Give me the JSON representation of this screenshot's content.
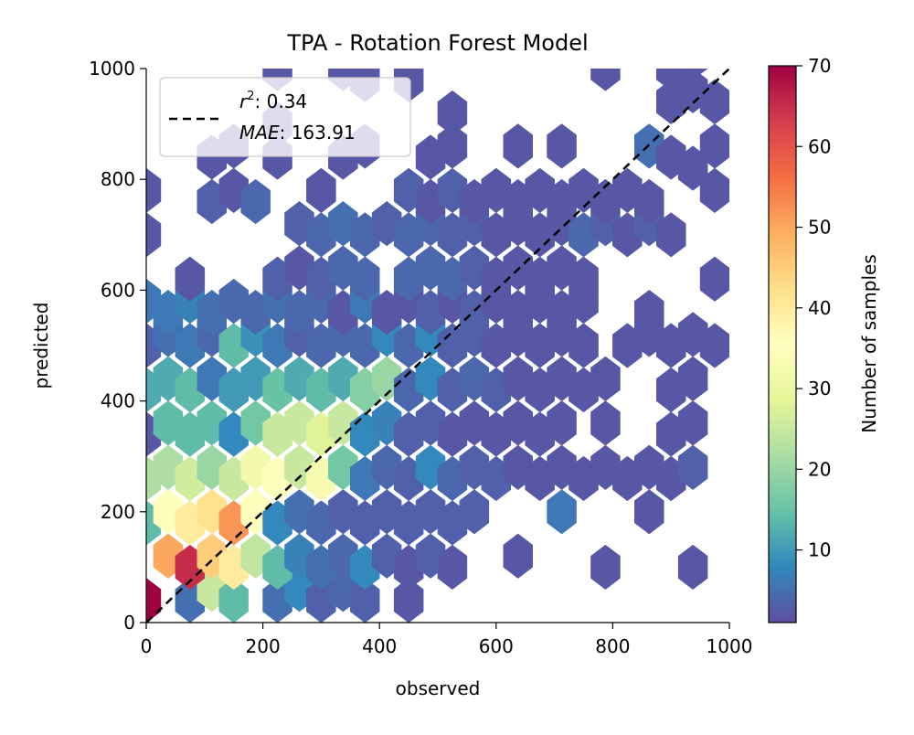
{
  "chart_data": {
    "type": "hexbin",
    "title": "TPA - Rotation Forest Model",
    "xlabel": "observed",
    "ylabel": "predicted",
    "xlim": [
      0,
      1000
    ],
    "ylim": [
      0,
      1000
    ],
    "x_ticks": [
      0,
      200,
      400,
      600,
      800,
      1000
    ],
    "y_ticks": [
      0,
      200,
      400,
      600,
      800,
      1000
    ],
    "grid": false,
    "legend": {
      "position": "top-left",
      "line_label": "1:1 line",
      "r2_label": "r",
      "r2_value": "0.34",
      "mae_label": "MAE",
      "mae_value": "163.91"
    },
    "colorbar": {
      "label": "Number of samples",
      "min": 1,
      "max": 70,
      "ticks": [
        10,
        20,
        30,
        40,
        50,
        60,
        70
      ],
      "colormap": "Spectral_r"
    },
    "hex_size_data_units": 50,
    "bins": [
      {
        "x": 0,
        "y": 40,
        "count": 70
      },
      {
        "x": 75,
        "y": 40,
        "count": 5
      },
      {
        "x": 112.5,
        "y": 60,
        "count": 25
      },
      {
        "x": 150,
        "y": 40,
        "count": 14
      },
      {
        "x": 225,
        "y": 40,
        "count": 5
      },
      {
        "x": 262.5,
        "y": 60,
        "count": 8
      },
      {
        "x": 300,
        "y": 40,
        "count": 3
      },
      {
        "x": 337.5,
        "y": 60,
        "count": 4
      },
      {
        "x": 375,
        "y": 40,
        "count": 3
      },
      {
        "x": 450,
        "y": 40,
        "count": 2
      },
      {
        "x": 37.5,
        "y": 120,
        "count": 50
      },
      {
        "x": 75,
        "y": 100,
        "count": 65
      },
      {
        "x": 112.5,
        "y": 120,
        "count": 45
      },
      {
        "x": 150,
        "y": 100,
        "count": 40
      },
      {
        "x": 187.5,
        "y": 120,
        "count": 24
      },
      {
        "x": 225,
        "y": 100,
        "count": 14
      },
      {
        "x": 262.5,
        "y": 120,
        "count": 7
      },
      {
        "x": 300,
        "y": 100,
        "count": 5
      },
      {
        "x": 337.5,
        "y": 120,
        "count": 4
      },
      {
        "x": 375,
        "y": 100,
        "count": 8
      },
      {
        "x": 412.5,
        "y": 120,
        "count": 3
      },
      {
        "x": 450,
        "y": 100,
        "count": 2
      },
      {
        "x": 487.5,
        "y": 120,
        "count": 3
      },
      {
        "x": 525,
        "y": 100,
        "count": 2
      },
      {
        "x": 637.5,
        "y": 120,
        "count": 2
      },
      {
        "x": 787.5,
        "y": 100,
        "count": 2
      },
      {
        "x": 937.5,
        "y": 100,
        "count": 2
      },
      {
        "x": 0,
        "y": 180,
        "count": 14
      },
      {
        "x": 37.5,
        "y": 200,
        "count": 35
      },
      {
        "x": 75,
        "y": 180,
        "count": 40
      },
      {
        "x": 112.5,
        "y": 200,
        "count": 42
      },
      {
        "x": 150,
        "y": 180,
        "count": 52
      },
      {
        "x": 187.5,
        "y": 200,
        "count": 35
      },
      {
        "x": 225,
        "y": 180,
        "count": 8
      },
      {
        "x": 262.5,
        "y": 200,
        "count": 5
      },
      {
        "x": 300,
        "y": 180,
        "count": 4
      },
      {
        "x": 337.5,
        "y": 200,
        "count": 3
      },
      {
        "x": 375,
        "y": 180,
        "count": 3
      },
      {
        "x": 412.5,
        "y": 200,
        "count": 3
      },
      {
        "x": 450,
        "y": 180,
        "count": 3
      },
      {
        "x": 487.5,
        "y": 200,
        "count": 3
      },
      {
        "x": 525,
        "y": 180,
        "count": 3
      },
      {
        "x": 562.5,
        "y": 200,
        "count": 3
      },
      {
        "x": 712.5,
        "y": 200,
        "count": 6
      },
      {
        "x": 862.5,
        "y": 200,
        "count": 2
      },
      {
        "x": 0,
        "y": 260,
        "count": 22
      },
      {
        "x": 37.5,
        "y": 280,
        "count": 22
      },
      {
        "x": 75,
        "y": 260,
        "count": 26
      },
      {
        "x": 112.5,
        "y": 280,
        "count": 20
      },
      {
        "x": 150,
        "y": 260,
        "count": 25
      },
      {
        "x": 187.5,
        "y": 280,
        "count": 32
      },
      {
        "x": 225,
        "y": 260,
        "count": 35
      },
      {
        "x": 262.5,
        "y": 280,
        "count": 25
      },
      {
        "x": 300,
        "y": 260,
        "count": 33
      },
      {
        "x": 337.5,
        "y": 280,
        "count": 16
      },
      {
        "x": 375,
        "y": 260,
        "count": 6
      },
      {
        "x": 412.5,
        "y": 280,
        "count": 4
      },
      {
        "x": 450,
        "y": 260,
        "count": 3
      },
      {
        "x": 487.5,
        "y": 280,
        "count": 8
      },
      {
        "x": 525,
        "y": 260,
        "count": 4
      },
      {
        "x": 562.5,
        "y": 280,
        "count": 3
      },
      {
        "x": 600,
        "y": 260,
        "count": 3
      },
      {
        "x": 637.5,
        "y": 280,
        "count": 2
      },
      {
        "x": 675,
        "y": 260,
        "count": 2
      },
      {
        "x": 712.5,
        "y": 280,
        "count": 2
      },
      {
        "x": 750,
        "y": 260,
        "count": 2
      },
      {
        "x": 787.5,
        "y": 280,
        "count": 2
      },
      {
        "x": 825,
        "y": 260,
        "count": 2
      },
      {
        "x": 862.5,
        "y": 280,
        "count": 2
      },
      {
        "x": 900,
        "y": 260,
        "count": 2
      },
      {
        "x": 937.5,
        "y": 280,
        "count": 3
      },
      {
        "x": 0,
        "y": 340,
        "count": 2
      },
      {
        "x": 37.5,
        "y": 360,
        "count": 14
      },
      {
        "x": 75,
        "y": 340,
        "count": 14
      },
      {
        "x": 112.5,
        "y": 360,
        "count": 14
      },
      {
        "x": 150,
        "y": 340,
        "count": 8
      },
      {
        "x": 187.5,
        "y": 360,
        "count": 16
      },
      {
        "x": 225,
        "y": 340,
        "count": 25
      },
      {
        "x": 262.5,
        "y": 360,
        "count": 25
      },
      {
        "x": 300,
        "y": 340,
        "count": 28
      },
      {
        "x": 337.5,
        "y": 360,
        "count": 25
      },
      {
        "x": 375,
        "y": 340,
        "count": 8
      },
      {
        "x": 412.5,
        "y": 360,
        "count": 7
      },
      {
        "x": 450,
        "y": 340,
        "count": 3
      },
      {
        "x": 487.5,
        "y": 360,
        "count": 3
      },
      {
        "x": 525,
        "y": 340,
        "count": 2
      },
      {
        "x": 562.5,
        "y": 360,
        "count": 2
      },
      {
        "x": 600,
        "y": 340,
        "count": 2
      },
      {
        "x": 637.5,
        "y": 360,
        "count": 2
      },
      {
        "x": 675,
        "y": 340,
        "count": 2
      },
      {
        "x": 712.5,
        "y": 360,
        "count": 2
      },
      {
        "x": 787.5,
        "y": 360,
        "count": 2
      },
      {
        "x": 900,
        "y": 340,
        "count": 2
      },
      {
        "x": 937.5,
        "y": 360,
        "count": 2
      },
      {
        "x": 0,
        "y": 420,
        "count": 12
      },
      {
        "x": 37.5,
        "y": 440,
        "count": 12
      },
      {
        "x": 75,
        "y": 420,
        "count": 14
      },
      {
        "x": 112.5,
        "y": 440,
        "count": 6
      },
      {
        "x": 150,
        "y": 420,
        "count": 10
      },
      {
        "x": 187.5,
        "y": 440,
        "count": 10
      },
      {
        "x": 225,
        "y": 420,
        "count": 15
      },
      {
        "x": 262.5,
        "y": 440,
        "count": 12
      },
      {
        "x": 300,
        "y": 420,
        "count": 14
      },
      {
        "x": 337.5,
        "y": 440,
        "count": 12
      },
      {
        "x": 375,
        "y": 420,
        "count": 18
      },
      {
        "x": 412.5,
        "y": 440,
        "count": 20
      },
      {
        "x": 450,
        "y": 420,
        "count": 4
      },
      {
        "x": 487.5,
        "y": 440,
        "count": 8
      },
      {
        "x": 525,
        "y": 420,
        "count": 3
      },
      {
        "x": 562.5,
        "y": 440,
        "count": 4
      },
      {
        "x": 600,
        "y": 420,
        "count": 3
      },
      {
        "x": 637.5,
        "y": 440,
        "count": 2
      },
      {
        "x": 675,
        "y": 420,
        "count": 2
      },
      {
        "x": 712.5,
        "y": 440,
        "count": 2
      },
      {
        "x": 750,
        "y": 420,
        "count": 2
      },
      {
        "x": 787.5,
        "y": 440,
        "count": 2
      },
      {
        "x": 900,
        "y": 420,
        "count": 2
      },
      {
        "x": 937.5,
        "y": 440,
        "count": 2
      },
      {
        "x": 0,
        "y": 500,
        "count": 3
      },
      {
        "x": 37.5,
        "y": 520,
        "count": 5
      },
      {
        "x": 75,
        "y": 500,
        "count": 6
      },
      {
        "x": 112.5,
        "y": 520,
        "count": 4
      },
      {
        "x": 150,
        "y": 500,
        "count": 14
      },
      {
        "x": 187.5,
        "y": 520,
        "count": 9
      },
      {
        "x": 225,
        "y": 500,
        "count": 6
      },
      {
        "x": 262.5,
        "y": 520,
        "count": 3
      },
      {
        "x": 300,
        "y": 500,
        "count": 4
      },
      {
        "x": 337.5,
        "y": 520,
        "count": 4
      },
      {
        "x": 375,
        "y": 500,
        "count": 4
      },
      {
        "x": 412.5,
        "y": 520,
        "count": 8
      },
      {
        "x": 450,
        "y": 500,
        "count": 4
      },
      {
        "x": 487.5,
        "y": 520,
        "count": 8
      },
      {
        "x": 525,
        "y": 500,
        "count": 3
      },
      {
        "x": 562.5,
        "y": 520,
        "count": 3
      },
      {
        "x": 600,
        "y": 500,
        "count": 2
      },
      {
        "x": 637.5,
        "y": 520,
        "count": 2
      },
      {
        "x": 675,
        "y": 500,
        "count": 2
      },
      {
        "x": 712.5,
        "y": 520,
        "count": 2
      },
      {
        "x": 750,
        "y": 500,
        "count": 2
      },
      {
        "x": 825,
        "y": 500,
        "count": 2
      },
      {
        "x": 862.5,
        "y": 520,
        "count": 2
      },
      {
        "x": 900,
        "y": 500,
        "count": 2
      },
      {
        "x": 937.5,
        "y": 520,
        "count": 2
      },
      {
        "x": 975,
        "y": 500,
        "count": 2
      },
      {
        "x": 0,
        "y": 580,
        "count": 6
      },
      {
        "x": 37.5,
        "y": 560,
        "count": 6
      },
      {
        "x": 75,
        "y": 580,
        "count": 7
      },
      {
        "x": 112.5,
        "y": 560,
        "count": 5
      },
      {
        "x": 150,
        "y": 580,
        "count": 4
      },
      {
        "x": 187.5,
        "y": 560,
        "count": 4
      },
      {
        "x": 225,
        "y": 580,
        "count": 5
      },
      {
        "x": 262.5,
        "y": 560,
        "count": 4
      },
      {
        "x": 300,
        "y": 580,
        "count": 4
      },
      {
        "x": 337.5,
        "y": 560,
        "count": 2
      },
      {
        "x": 375,
        "y": 580,
        "count": 6
      },
      {
        "x": 412.5,
        "y": 560,
        "count": 2
      },
      {
        "x": 450,
        "y": 580,
        "count": 2
      },
      {
        "x": 487.5,
        "y": 560,
        "count": 3
      },
      {
        "x": 525,
        "y": 580,
        "count": 2
      },
      {
        "x": 562.5,
        "y": 560,
        "count": 3
      },
      {
        "x": 600,
        "y": 580,
        "count": 2
      },
      {
        "x": 637.5,
        "y": 560,
        "count": 2
      },
      {
        "x": 675,
        "y": 580,
        "count": 2
      },
      {
        "x": 712.5,
        "y": 560,
        "count": 2
      },
      {
        "x": 750,
        "y": 580,
        "count": 2
      },
      {
        "x": 862.5,
        "y": 560,
        "count": 2
      },
      {
        "x": 75,
        "y": 620,
        "count": 2
      },
      {
        "x": 225,
        "y": 620,
        "count": 3
      },
      {
        "x": 262.5,
        "y": 640,
        "count": 2
      },
      {
        "x": 300,
        "y": 620,
        "count": 3
      },
      {
        "x": 337.5,
        "y": 640,
        "count": 4
      },
      {
        "x": 375,
        "y": 620,
        "count": 4
      },
      {
        "x": 450,
        "y": 620,
        "count": 4
      },
      {
        "x": 487.5,
        "y": 640,
        "count": 4
      },
      {
        "x": 525,
        "y": 620,
        "count": 4
      },
      {
        "x": 562.5,
        "y": 640,
        "count": 3
      },
      {
        "x": 600,
        "y": 620,
        "count": 2
      },
      {
        "x": 637.5,
        "y": 640,
        "count": 2
      },
      {
        "x": 675,
        "y": 620,
        "count": 2
      },
      {
        "x": 712.5,
        "y": 640,
        "count": 2
      },
      {
        "x": 750,
        "y": 620,
        "count": 2
      },
      {
        "x": 975,
        "y": 620,
        "count": 2
      },
      {
        "x": 0,
        "y": 700,
        "count": 2
      },
      {
        "x": 262.5,
        "y": 720,
        "count": 3
      },
      {
        "x": 300,
        "y": 700,
        "count": 4
      },
      {
        "x": 337.5,
        "y": 720,
        "count": 5
      },
      {
        "x": 375,
        "y": 700,
        "count": 4
      },
      {
        "x": 412.5,
        "y": 720,
        "count": 3
      },
      {
        "x": 450,
        "y": 700,
        "count": 4
      },
      {
        "x": 487.5,
        "y": 720,
        "count": 4
      },
      {
        "x": 525,
        "y": 700,
        "count": 3
      },
      {
        "x": 562.5,
        "y": 720,
        "count": 3
      },
      {
        "x": 600,
        "y": 700,
        "count": 2
      },
      {
        "x": 637.5,
        "y": 720,
        "count": 2
      },
      {
        "x": 675,
        "y": 700,
        "count": 2
      },
      {
        "x": 712.5,
        "y": 720,
        "count": 2
      },
      {
        "x": 750,
        "y": 700,
        "count": 4
      },
      {
        "x": 787.5,
        "y": 720,
        "count": 3
      },
      {
        "x": 825,
        "y": 700,
        "count": 2
      },
      {
        "x": 862.5,
        "y": 720,
        "count": 3
      },
      {
        "x": 900,
        "y": 700,
        "count": 2
      },
      {
        "x": 0,
        "y": 780,
        "count": 2
      },
      {
        "x": 112.5,
        "y": 760,
        "count": 3
      },
      {
        "x": 150,
        "y": 780,
        "count": 2
      },
      {
        "x": 187.5,
        "y": 760,
        "count": 4
      },
      {
        "x": 300,
        "y": 780,
        "count": 2
      },
      {
        "x": 450,
        "y": 780,
        "count": 3
      },
      {
        "x": 487.5,
        "y": 760,
        "count": 2
      },
      {
        "x": 525,
        "y": 780,
        "count": 3
      },
      {
        "x": 562.5,
        "y": 760,
        "count": 2
      },
      {
        "x": 600,
        "y": 780,
        "count": 2
      },
      {
        "x": 637.5,
        "y": 760,
        "count": 2
      },
      {
        "x": 675,
        "y": 780,
        "count": 2
      },
      {
        "x": 712.5,
        "y": 760,
        "count": 2
      },
      {
        "x": 750,
        "y": 780,
        "count": 2
      },
      {
        "x": 787.5,
        "y": 760,
        "count": 2
      },
      {
        "x": 825,
        "y": 780,
        "count": 2
      },
      {
        "x": 862.5,
        "y": 760,
        "count": 2
      },
      {
        "x": 937.5,
        "y": 820,
        "count": 2
      },
      {
        "x": 975,
        "y": 780,
        "count": 2
      },
      {
        "x": 112.5,
        "y": 840,
        "count": 2
      },
      {
        "x": 150,
        "y": 860,
        "count": 2
      },
      {
        "x": 225,
        "y": 840,
        "count": 2
      },
      {
        "x": 337.5,
        "y": 840,
        "count": 2
      },
      {
        "x": 375,
        "y": 860,
        "count": 2
      },
      {
        "x": 487.5,
        "y": 840,
        "count": 2
      },
      {
        "x": 525,
        "y": 860,
        "count": 2
      },
      {
        "x": 637.5,
        "y": 860,
        "count": 2
      },
      {
        "x": 712.5,
        "y": 860,
        "count": 2
      },
      {
        "x": 862.5,
        "y": 860,
        "count": 5
      },
      {
        "x": 900,
        "y": 840,
        "count": 2
      },
      {
        "x": 975,
        "y": 860,
        "count": 2
      },
      {
        "x": 225,
        "y": 900,
        "count": 2
      },
      {
        "x": 525,
        "y": 920,
        "count": 2
      },
      {
        "x": 900,
        "y": 940,
        "count": 2
      },
      {
        "x": 937.5,
        "y": 960,
        "count": 2
      },
      {
        "x": 975,
        "y": 940,
        "count": 2
      },
      {
        "x": 787.5,
        "y": 1000,
        "count": 2
      },
      {
        "x": 225,
        "y": 1000,
        "count": 2
      },
      {
        "x": 337.5,
        "y": 1000,
        "count": 2
      },
      {
        "x": 375,
        "y": 980,
        "count": 2
      },
      {
        "x": 450,
        "y": 980,
        "count": 2
      },
      {
        "x": 900,
        "y": 1000,
        "count": 2
      },
      {
        "x": 937.5,
        "y": 1020,
        "count": 2
      }
    ]
  }
}
